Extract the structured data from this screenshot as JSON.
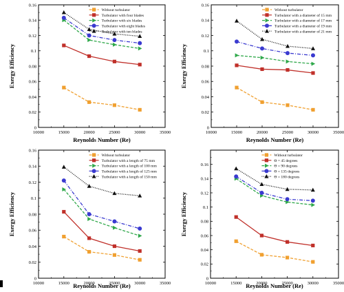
{
  "colors": {
    "orange": "#f0a030",
    "red": "#c0302a",
    "green": "#2fa84a",
    "blue": "#3a3ad0",
    "black": "#111111",
    "gray": "#888888"
  },
  "chart_data": [
    {
      "type": "line",
      "panel": "top-left",
      "xlabel": "Reynolds Number (Re)",
      "ylabel": "Exergy Efficiency",
      "xlim": [
        10000,
        35000
      ],
      "ylim": [
        0,
        0.16
      ],
      "x_ticks": [
        "10000",
        "15000",
        "20000",
        "25000",
        "30000",
        "35000"
      ],
      "y_ticks": [
        "0",
        "0.02",
        "0.04",
        "0.06",
        "0.08",
        "0.1",
        "0.12",
        "0.14",
        "0.16"
      ],
      "x": [
        15000,
        20000,
        25000,
        30000
      ],
      "legend_position": "top-right",
      "series": [
        {
          "name": "Without turbulator",
          "values": [
            0.052,
            0.033,
            0.029,
            0.023
          ],
          "color": "orange",
          "marker": "square",
          "dash": "dashed"
        },
        {
          "name": "Turbulator with four blades",
          "values": [
            0.107,
            0.093,
            0.086,
            0.082
          ],
          "color": "red",
          "marker": "square",
          "dash": "solid"
        },
        {
          "name": "Turbulator with six blades",
          "values": [
            0.14,
            0.114,
            0.108,
            0.103
          ],
          "color": "green",
          "marker": "triangle-right",
          "dash": "dashed"
        },
        {
          "name": "Turbulator with eight blades",
          "values": [
            0.143,
            0.12,
            0.114,
            0.11
          ],
          "color": "blue",
          "marker": "circle",
          "dash": "dashdot"
        },
        {
          "name": "Turbulator with ten blades",
          "values": [
            0.15,
            0.128,
            0.122,
            0.119
          ],
          "color": "black",
          "marker": "triangle-up",
          "dash": "dotted"
        }
      ]
    },
    {
      "type": "line",
      "panel": "top-right",
      "xlabel": "Reynolds Number (Re)",
      "ylabel": "Exergy Efficiency",
      "xlim": [
        10000,
        35000
      ],
      "ylim": [
        0,
        0.16
      ],
      "x_ticks": [
        "10000",
        "15000",
        "20000",
        "25000",
        "30000",
        "35000"
      ],
      "y_ticks": [
        "0",
        "0.02",
        "0.04",
        "0.06",
        "0.08",
        "0.1",
        "0.12",
        "0.14",
        "0.16"
      ],
      "x": [
        15000,
        20000,
        25000,
        30000
      ],
      "legend_position": "top-right",
      "series": [
        {
          "name": "Without turbulator",
          "values": [
            0.052,
            0.033,
            0.029,
            0.023
          ],
          "color": "orange",
          "marker": "square",
          "dash": "dashed"
        },
        {
          "name": "Turbulator with a diameter of 15 mm",
          "values": [
            0.081,
            0.076,
            0.075,
            0.071
          ],
          "color": "red",
          "marker": "square",
          "dash": "solid"
        },
        {
          "name": "Turbulator with a diameter of 17 mm",
          "values": [
            0.094,
            0.091,
            0.086,
            0.083
          ],
          "color": "green",
          "marker": "triangle-right",
          "dash": "dashed"
        },
        {
          "name": "Turbulator with a diameter of 19 mm",
          "values": [
            0.112,
            0.103,
            0.097,
            0.094
          ],
          "color": "blue",
          "marker": "circle",
          "dash": "dashdot"
        },
        {
          "name": "Turbulator with a diameter of 21 mm",
          "values": [
            0.139,
            0.115,
            0.106,
            0.103
          ],
          "color": "black",
          "marker": "triangle-up",
          "dash": "dotted"
        }
      ]
    },
    {
      "type": "line",
      "panel": "bottom-left",
      "xlabel": "Reynolds Number (Re)",
      "ylabel": "Exergy Efficiency",
      "xlim": [
        10000,
        35000
      ],
      "ylim": [
        0,
        0.16
      ],
      "x_ticks": [
        "10000",
        "15000",
        "20000",
        "25000",
        "30000",
        "35000"
      ],
      "y_ticks": [
        "0",
        "0.02",
        "0.04",
        "0.06",
        "0.08",
        "0.1",
        "0.12",
        "0.14",
        "0.16"
      ],
      "x": [
        15000,
        20000,
        25000,
        30000
      ],
      "legend_position": "top-right",
      "series": [
        {
          "name": "Without turbulator",
          "values": [
            0.052,
            0.033,
            0.029,
            0.023
          ],
          "color": "orange",
          "marker": "square",
          "dash": "dashed"
        },
        {
          "name": "Turbulator with a length of 75 mm",
          "values": [
            0.083,
            0.05,
            0.04,
            0.034
          ],
          "color": "red",
          "marker": "square",
          "dash": "solid"
        },
        {
          "name": "Turbulator with a length of 100 mm",
          "values": [
            0.111,
            0.074,
            0.063,
            0.053
          ],
          "color": "green",
          "marker": "triangle-right",
          "dash": "dashed"
        },
        {
          "name": "Turbulator with a length of 125 mm",
          "values": [
            0.122,
            0.08,
            0.071,
            0.062
          ],
          "color": "blue",
          "marker": "circle",
          "dash": "dashdot"
        },
        {
          "name": "Turbulator with a length of 150 mm",
          "values": [
            0.139,
            0.115,
            0.106,
            0.103
          ],
          "color": "black",
          "marker": "triangle-up",
          "dash": "dotted"
        }
      ]
    },
    {
      "type": "line",
      "panel": "bottom-right",
      "xlabel": "Reynolds Number (Re)",
      "ylabel": "Exergy Efficiency",
      "xlim": [
        10000,
        35000
      ],
      "ylim": [
        0,
        0.18
      ],
      "x_ticks": [
        "10000",
        "15000",
        "20000",
        "25000",
        "30000",
        "35000"
      ],
      "y_ticks": [
        "0",
        "0.02",
        "0.04",
        "0.06",
        "0.08",
        "0.1",
        "0.12",
        "0.14",
        "0.16"
      ],
      "x": [
        15000,
        20000,
        25000,
        30000
      ],
      "legend_position": "top-right",
      "series": [
        {
          "name": "Without turbulator",
          "values": [
            0.052,
            0.033,
            0.029,
            0.023
          ],
          "color": "orange",
          "marker": "square",
          "dash": "dashed"
        },
        {
          "name": "Θ = 45 degrees",
          "values": [
            0.086,
            0.06,
            0.051,
            0.046
          ],
          "color": "red",
          "marker": "square",
          "dash": "solid"
        },
        {
          "name": "Θ = 90 degrees",
          "values": [
            0.14,
            0.116,
            0.107,
            0.103
          ],
          "color": "green",
          "marker": "triangle-right",
          "dash": "dashed"
        },
        {
          "name": "Θ = 135 degrees",
          "values": [
            0.143,
            0.12,
            0.111,
            0.109
          ],
          "color": "blue",
          "marker": "circle",
          "dash": "dashdot"
        },
        {
          "name": "Θ = 180 degrees",
          "values": [
            0.154,
            0.132,
            0.125,
            0.124
          ],
          "color": "black",
          "marker": "triangle-up",
          "dash": "dotted"
        }
      ]
    }
  ]
}
